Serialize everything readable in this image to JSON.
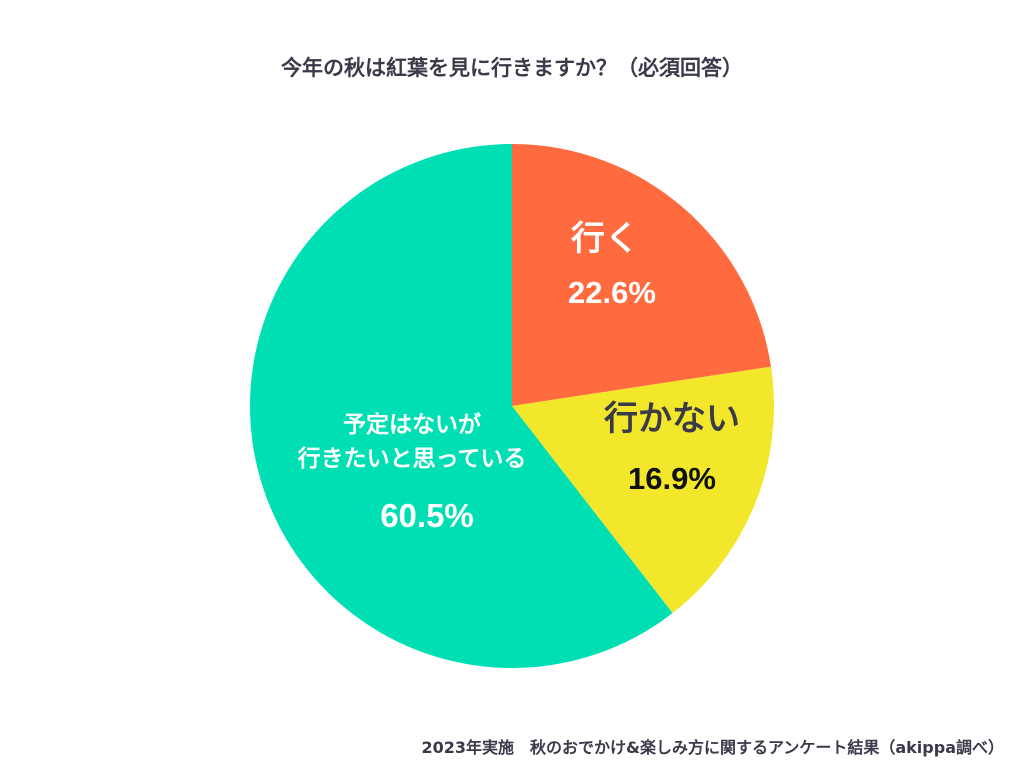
{
  "chart_data": {
    "type": "pie",
    "title": "今年の秋は紅葉を見に行きますか？（必須回答）",
    "slices": [
      {
        "label_lines": [
          "行く"
        ],
        "value": 22.6,
        "value_label": "22.6%",
        "color": "#ff6b3f",
        "text_color": "#ffffff"
      },
      {
        "label_lines": [
          "行かない"
        ],
        "value": 16.9,
        "value_label": "16.9%",
        "color": "#f2e72a",
        "text_color": "#3a3a48",
        "value_text_color": "#111111"
      },
      {
        "label_lines": [
          "予定はないが",
          "行きたいと思っている"
        ],
        "value": 60.5,
        "value_label": "60.5%",
        "color": "#00dfb3",
        "text_color": "#ffffff"
      }
    ],
    "start_angle": "12 o'clock",
    "direction": "clockwise",
    "legend": "none"
  },
  "footer": {
    "note": "2023年実施　秋のおでかけ&楽しみ方に関するアンケート結果（akippa調べ）"
  }
}
